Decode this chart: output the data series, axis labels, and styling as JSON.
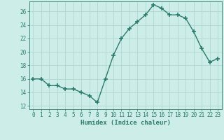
{
  "x": [
    0,
    1,
    2,
    3,
    4,
    5,
    6,
    7,
    8,
    9,
    10,
    11,
    12,
    13,
    14,
    15,
    16,
    17,
    18,
    19,
    20,
    21,
    22,
    23
  ],
  "y": [
    16,
    16,
    15,
    15,
    14.5,
    14.5,
    14,
    13.5,
    12.5,
    16,
    19.5,
    22,
    23.5,
    24.5,
    25.5,
    27,
    26.5,
    25.5,
    25.5,
    25,
    23,
    20.5,
    18.5,
    19
  ],
  "xlabel": "Humidex (Indice chaleur)",
  "ylim": [
    11.5,
    27.5
  ],
  "xlim": [
    -0.5,
    23.5
  ],
  "yticks": [
    12,
    14,
    16,
    18,
    20,
    22,
    24,
    26
  ],
  "xticks": [
    0,
    1,
    2,
    3,
    4,
    5,
    6,
    7,
    8,
    9,
    10,
    11,
    12,
    13,
    14,
    15,
    16,
    17,
    18,
    19,
    20,
    21,
    22,
    23
  ],
  "line_color": "#2d7b6e",
  "bg_color": "#cdeee8",
  "grid_color": "#b0d8d0",
  "marker": "+",
  "markersize": 4,
  "markeredgewidth": 1.2,
  "linewidth": 1.0,
  "tick_fontsize": 5.5,
  "xlabel_fontsize": 6.5
}
